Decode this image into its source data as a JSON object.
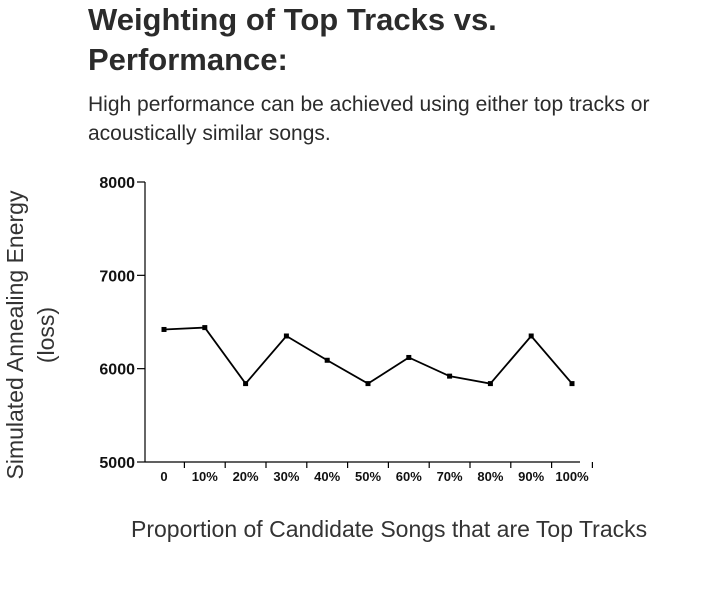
{
  "chart_data": {
    "type": "line",
    "title": "Weighting of Top Tracks vs. Performance:",
    "subtitle": "High performance can be achieved using either top tracks or acoustically similar songs.",
    "xlabel": "Proportion of Candidate Songs that are Top Tracks",
    "ylabel": "Simulated Annealing Energy (loss)",
    "categories": [
      "0",
      "10%",
      "20%",
      "30%",
      "40%",
      "50%",
      "60%",
      "70%",
      "80%",
      "90%",
      "100%"
    ],
    "values": [
      6420,
      6440,
      5840,
      6350,
      6090,
      5840,
      6120,
      5920,
      5840,
      6350,
      5840
    ],
    "yticks": [
      "5000",
      "6000",
      "7000",
      "8000"
    ],
    "ytick_values": [
      5000,
      6000,
      7000,
      8000
    ],
    "ylim": [
      5000,
      8000
    ],
    "grid": false,
    "legend": "none",
    "line_color": "#000000"
  }
}
